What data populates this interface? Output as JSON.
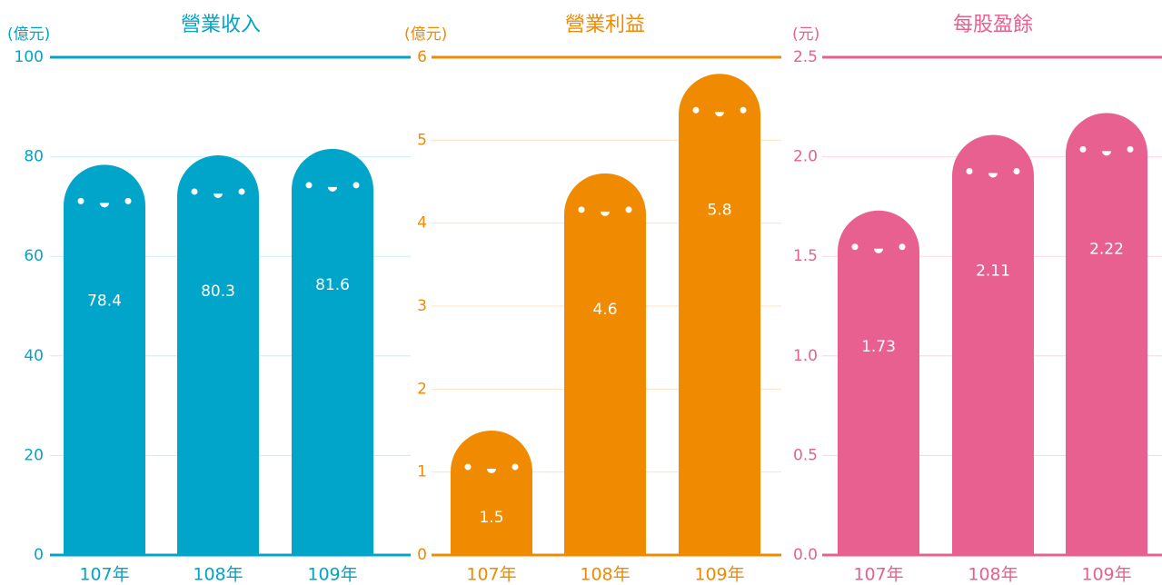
{
  "chart_data": [
    {
      "type": "bar",
      "title": "營業收入",
      "y_label": "(億元)",
      "categories": [
        "107年",
        "108年",
        "109年"
      ],
      "values": [
        78.4,
        80.3,
        81.6
      ],
      "color": "#00a5c9",
      "ylim": [
        0,
        100
      ],
      "yticks": [
        0,
        20,
        40,
        60,
        80,
        100
      ],
      "grid": true
    },
    {
      "type": "bar",
      "title": "營業利益",
      "y_label": "(億元)",
      "categories": [
        "107年",
        "108年",
        "109年"
      ],
      "values": [
        1.5,
        4.6,
        5.8
      ],
      "color": "#f08a00",
      "ylim": [
        0,
        6
      ],
      "yticks": [
        0,
        1,
        2,
        3,
        4,
        5,
        6
      ],
      "grid": true
    },
    {
      "type": "bar",
      "title": "每股盈餘",
      "y_label": "(元)",
      "categories": [
        "107年",
        "108年",
        "109年"
      ],
      "values": [
        1.73,
        2.11,
        2.22
      ],
      "color": "#e8608f",
      "ylim": [
        0,
        2.5
      ],
      "yticks": [
        {
          "value": 0,
          "label": "0.0"
        },
        0.5,
        {
          "value": 1,
          "label": "1.0"
        },
        1.5,
        {
          "value": 2,
          "label": "2.0"
        },
        2.5
      ],
      "grid": true
    }
  ]
}
